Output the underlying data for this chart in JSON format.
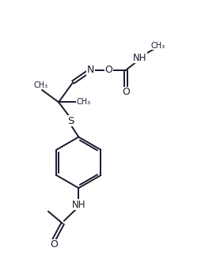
{
  "figsize": [
    2.83,
    3.47
  ],
  "dpi": 100,
  "bg_color": "#ffffff",
  "line_color": "#1a1a2e",
  "line_width": 1.4,
  "font_size": 8.5,
  "xlim": [
    0,
    10
  ],
  "ylim": [
    0,
    12.3
  ]
}
